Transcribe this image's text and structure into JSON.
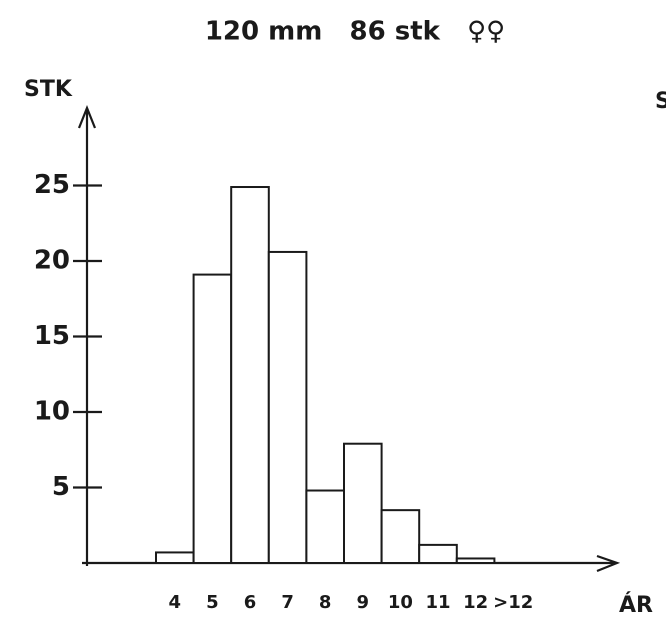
{
  "chart_data": {
    "type": "bar",
    "title": "120 mm   86 stk   ♀♀",
    "y_label": "STK",
    "x_label": "ÁR",
    "categories": [
      "4",
      "5",
      "6",
      "7",
      "8",
      "9",
      "10",
      "11",
      "12",
      ">12"
    ],
    "values": [
      0.7,
      19.1,
      24.9,
      20.6,
      4.8,
      7.9,
      3.5,
      1.2,
      0.3,
      0
    ],
    "color": "#ffffff",
    "edge_color": "#1a1a1a",
    "ylim": [
      0,
      30
    ],
    "yticks": [
      5,
      10,
      15,
      20,
      25
    ],
    "grid": false
  },
  "cropped_text": "S"
}
